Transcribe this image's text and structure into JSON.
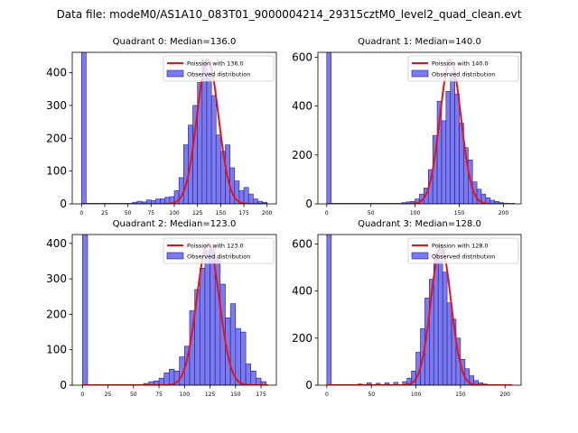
{
  "figure": {
    "suptitle": "Data file: modeM0/AS1A10_083T01_9000004214_29315cztM0_level2_quad_clean.evt"
  },
  "colors": {
    "bar_fill": "#7b7bef",
    "bar_edge": "#1f1f8f",
    "fit_line": "#ee1111"
  },
  "chart_data": [
    {
      "type": "bar",
      "title": "Quadrant 0: Median=136.0",
      "xlim": [
        -10,
        210
      ],
      "ylim": [
        0,
        462
      ],
      "xticks": [
        0,
        25,
        50,
        75,
        100,
        125,
        150,
        175,
        200
      ],
      "yticks": [
        0,
        100,
        200,
        300,
        400
      ],
      "bin_width": 5,
      "bins_left": [
        0,
        55,
        60,
        65,
        70,
        75,
        80,
        85,
        90,
        95,
        100,
        105,
        110,
        115,
        120,
        125,
        130,
        135,
        140,
        145,
        150,
        155,
        160,
        165,
        170,
        175,
        180,
        185,
        190,
        195
      ],
      "counts": [
        462,
        5,
        8,
        6,
        12,
        10,
        15,
        15,
        20,
        22,
        40,
        80,
        180,
        240,
        300,
        370,
        440,
        400,
        330,
        210,
        160,
        180,
        110,
        70,
        40,
        50,
        30,
        15,
        8,
        5
      ],
      "fit": {
        "mu": 136.0,
        "peak": 440,
        "x_range": [
          0,
          200
        ]
      },
      "legend": [
        "Poission with 136.0",
        "Observed distribution"
      ]
    },
    {
      "type": "bar",
      "title": "Quadrant 1: Median=140.0",
      "xlim": [
        -10,
        220
      ],
      "ylim": [
        0,
        620
      ],
      "xticks": [
        0,
        50,
        100,
        150,
        200
      ],
      "yticks": [
        0,
        200,
        400,
        600
      ],
      "bin_width": 5,
      "bins_left": [
        0,
        85,
        90,
        95,
        100,
        105,
        110,
        115,
        120,
        125,
        130,
        135,
        140,
        145,
        150,
        155,
        160,
        165,
        170,
        175,
        180,
        185,
        190,
        195,
        200
      ],
      "counts": [
        620,
        5,
        8,
        10,
        20,
        40,
        65,
        140,
        280,
        420,
        340,
        460,
        540,
        450,
        330,
        230,
        180,
        90,
        60,
        40,
        25,
        15,
        10,
        5,
        3
      ],
      "fit": {
        "mu": 140.0,
        "peak": 590,
        "x_range": [
          0,
          213
        ]
      },
      "legend": [
        "Poission with 140.0",
        "Observed distribution"
      ]
    },
    {
      "type": "bar",
      "title": "Quadrant 2: Median=123.0",
      "xlim": [
        -10,
        190
      ],
      "ylim": [
        0,
        425
      ],
      "xticks": [
        0,
        25,
        50,
        75,
        100,
        125,
        150,
        175
      ],
      "yticks": [
        0,
        100,
        200,
        300,
        400
      ],
      "bin_width": 5,
      "bins_left": [
        0,
        60,
        65,
        70,
        75,
        80,
        85,
        90,
        95,
        100,
        105,
        110,
        115,
        120,
        125,
        130,
        135,
        140,
        145,
        150,
        155,
        160,
        165,
        170,
        175
      ],
      "counts": [
        425,
        5,
        10,
        12,
        20,
        35,
        45,
        40,
        80,
        110,
        210,
        270,
        330,
        380,
        390,
        360,
        285,
        190,
        230,
        160,
        150,
        60,
        40,
        20,
        10
      ],
      "fit": {
        "mu": 123.0,
        "peak": 400,
        "x_range": [
          0,
          182
        ]
      },
      "legend": [
        "Poission with 123.0",
        "Observed distribution"
      ]
    },
    {
      "type": "bar",
      "title": "Quadrant 3: Median=128.0",
      "xlim": [
        -10,
        218
      ],
      "ylim": [
        0,
        640
      ],
      "xticks": [
        0,
        50,
        100,
        150,
        200
      ],
      "yticks": [
        0,
        200,
        400,
        600
      ],
      "bin_width": 5,
      "bins_left": [
        0,
        35,
        45,
        55,
        65,
        75,
        85,
        90,
        95,
        100,
        105,
        110,
        115,
        120,
        125,
        130,
        135,
        140,
        145,
        150,
        155,
        160,
        165,
        170,
        175
      ],
      "counts": [
        640,
        5,
        10,
        8,
        10,
        12,
        15,
        30,
        60,
        140,
        240,
        370,
        450,
        560,
        600,
        480,
        350,
        280,
        200,
        110,
        70,
        40,
        20,
        10,
        5
      ],
      "fit": {
        "mu": 128.0,
        "peak": 590,
        "x_range": [
          0,
          208
        ]
      },
      "legend": [
        "Poission with 128.0",
        "Observed distribution"
      ]
    }
  ]
}
